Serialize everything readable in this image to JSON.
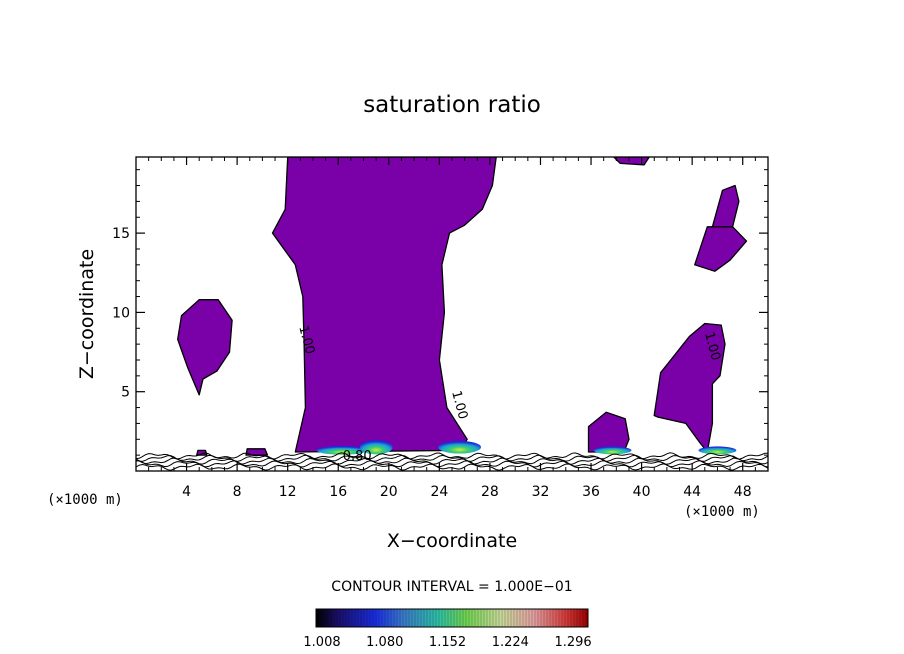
{
  "chart_data": {
    "type": "contour",
    "title": "saturation ratio",
    "xlabel": "X−coordinate",
    "ylabel": "Z−coordinate",
    "x_unit": "(×1000 m)",
    "y_unit": "(×1000 m)",
    "xlim": [
      0,
      50
    ],
    "ylim": [
      0,
      19.8
    ],
    "x_ticks": [
      "4",
      "8",
      "12",
      "16",
      "20",
      "24",
      "28",
      "32",
      "36",
      "40",
      "44",
      "48"
    ],
    "y_ticks": [
      "5",
      "10",
      "15"
    ],
    "contour_interval_text": "CONTOUR INTERVAL = 1.000E−01",
    "contour_labels": [
      {
        "text": "1.00",
        "x": 13.2,
        "z": 8.2
      },
      {
        "text": "1.00",
        "x": 25.3,
        "z": 4.1
      },
      {
        "text": "1.00",
        "x": 45.3,
        "z": 7.8
      },
      {
        "text": "0.80",
        "x": 17.5,
        "z": 0.7
      }
    ],
    "fill_color": "#7a00a8",
    "colorbar_ticks": [
      "1.008",
      "1.080",
      "1.152",
      "1.224",
      "1.296"
    ],
    "colorbar_range": [
      1.008,
      1.32
    ],
    "regions": [
      {
        "name": "central-tower",
        "points": [
          [
            12.6,
            1.2
          ],
          [
            13.4,
            4
          ],
          [
            13.3,
            8
          ],
          [
            13.2,
            11
          ],
          [
            12.6,
            13
          ],
          [
            10.8,
            15
          ],
          [
            11.8,
            16.5
          ],
          [
            12.0,
            19.8
          ],
          [
            28.5,
            19.8
          ],
          [
            28.2,
            18
          ],
          [
            27.4,
            16.5
          ],
          [
            26.0,
            15.5
          ],
          [
            24.8,
            15
          ],
          [
            24.2,
            13
          ],
          [
            24.4,
            10
          ],
          [
            24.0,
            7
          ],
          [
            24.6,
            4
          ],
          [
            26.2,
            2
          ],
          [
            25.6,
            1.3
          ]
        ]
      },
      {
        "name": "left-blob",
        "points": [
          [
            5.0,
            4.8
          ],
          [
            4.1,
            6.5
          ],
          [
            3.3,
            8.3
          ],
          [
            3.6,
            9.8
          ],
          [
            5.0,
            10.8
          ],
          [
            6.5,
            10.8
          ],
          [
            7.6,
            9.5
          ],
          [
            7.4,
            7.5
          ],
          [
            6.4,
            6.3
          ],
          [
            5.3,
            5.8
          ]
        ]
      },
      {
        "name": "top-fleck",
        "points": [
          [
            37.8,
            19.8
          ],
          [
            40.6,
            19.8
          ],
          [
            40.2,
            19.3
          ],
          [
            38.3,
            19.4
          ]
        ]
      },
      {
        "name": "right-lower",
        "points": [
          [
            45.2,
            1.2
          ],
          [
            45.6,
            3
          ],
          [
            45.6,
            5.5
          ],
          [
            46.2,
            6
          ],
          [
            46.6,
            8
          ],
          [
            46.3,
            9.2
          ],
          [
            45.0,
            9.3
          ],
          [
            43.8,
            8.5
          ],
          [
            42.3,
            7
          ],
          [
            41.5,
            6.2
          ],
          [
            41.0,
            3.5
          ],
          [
            41.3,
            3.4
          ],
          [
            43.5,
            3
          ],
          [
            44.6,
            1.8
          ]
        ]
      },
      {
        "name": "right-upper-lobe",
        "points": [
          [
            44.2,
            13
          ],
          [
            45.2,
            15.4
          ],
          [
            47.2,
            15.4
          ],
          [
            48.3,
            14.5
          ],
          [
            47.0,
            13.3
          ],
          [
            45.8,
            12.6
          ]
        ]
      },
      {
        "name": "right-upper-stem",
        "points": [
          [
            45.6,
            15.4
          ],
          [
            46.4,
            17.7
          ],
          [
            47.4,
            18
          ],
          [
            47.7,
            17
          ],
          [
            47.2,
            15.4
          ]
        ]
      },
      {
        "name": "small-dome",
        "points": [
          [
            35.8,
            1.2
          ],
          [
            35.8,
            2.8
          ],
          [
            37.2,
            3.7
          ],
          [
            38.7,
            3.3
          ],
          [
            39.0,
            2.0
          ],
          [
            38.6,
            1.2
          ]
        ]
      },
      {
        "name": "fleck-10",
        "points": [
          [
            8.7,
            1.0
          ],
          [
            8.8,
            1.4
          ],
          [
            10.2,
            1.4
          ],
          [
            10.4,
            1.0
          ]
        ]
      },
      {
        "name": "fleck-5",
        "points": [
          [
            4.8,
            1.0
          ],
          [
            4.9,
            1.3
          ],
          [
            5.5,
            1.3
          ],
          [
            5.6,
            1.0
          ]
        ]
      }
    ],
    "hot_spots": [
      {
        "x": 16.3,
        "z": 1.3,
        "w": 4.0,
        "h": 0.55
      },
      {
        "x": 19.0,
        "z": 1.5,
        "w": 2.6,
        "h": 0.9
      },
      {
        "x": 25.6,
        "z": 1.5,
        "w": 3.4,
        "h": 0.8
      },
      {
        "x": 37.7,
        "z": 1.3,
        "w": 3.0,
        "h": 0.5
      },
      {
        "x": 46.0,
        "z": 1.3,
        "w": 3.0,
        "h": 0.5
      }
    ]
  }
}
